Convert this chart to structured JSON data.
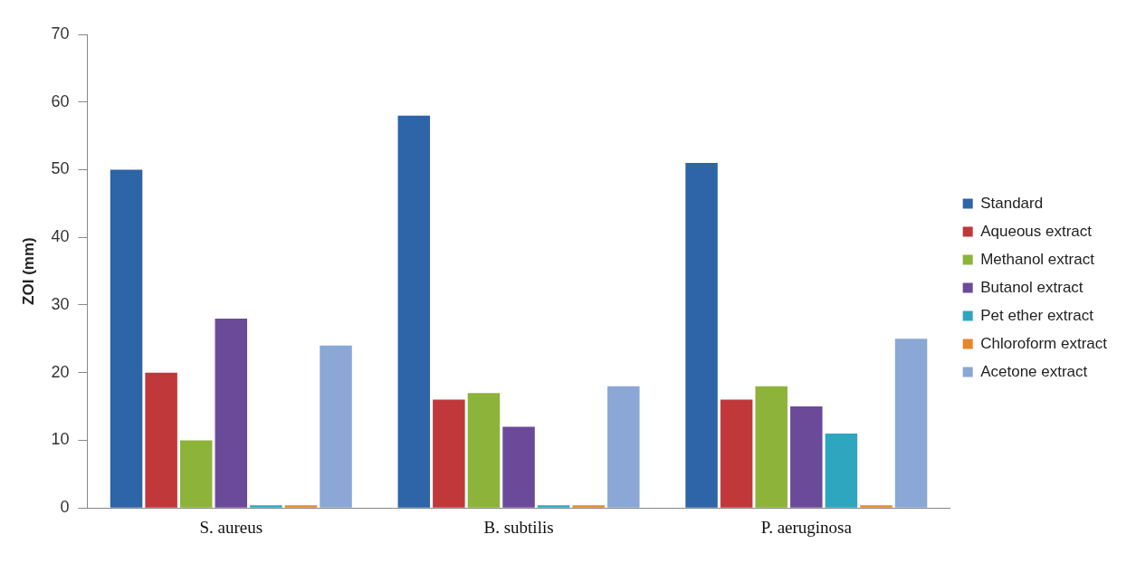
{
  "chart_data": {
    "type": "bar",
    "ylabel": "ZOI (mm)",
    "categories": [
      "S. aureus",
      "B. subtilis",
      "P. aeruginosa"
    ],
    "series": [
      {
        "name": "Standard",
        "color": "#2e64a8",
        "values": [
          50,
          58,
          51
        ]
      },
      {
        "name": "Aqueous extract",
        "color": "#c0383a",
        "values": [
          20,
          16,
          16
        ]
      },
      {
        "name": "Methanol extract",
        "color": "#8db33a",
        "values": [
          10,
          17,
          18
        ]
      },
      {
        "name": "Butanol extract",
        "color": "#6c4a9a",
        "values": [
          28,
          12,
          15
        ]
      },
      {
        "name": "Pet ether extract",
        "color": "#2ea6c0",
        "values": [
          0.4,
          0.4,
          11
        ]
      },
      {
        "name": "Chloroform extract",
        "color": "#e6872c",
        "values": [
          0.4,
          0.4,
          0.4
        ]
      },
      {
        "name": "Acetone extract",
        "color": "#8aa7d6",
        "values": [
          24,
          18,
          25
        ]
      }
    ],
    "ylim": [
      0,
      70
    ],
    "yticks": [
      0,
      10,
      20,
      30,
      40,
      50,
      60,
      70
    ],
    "grid": false,
    "legend": "right"
  }
}
